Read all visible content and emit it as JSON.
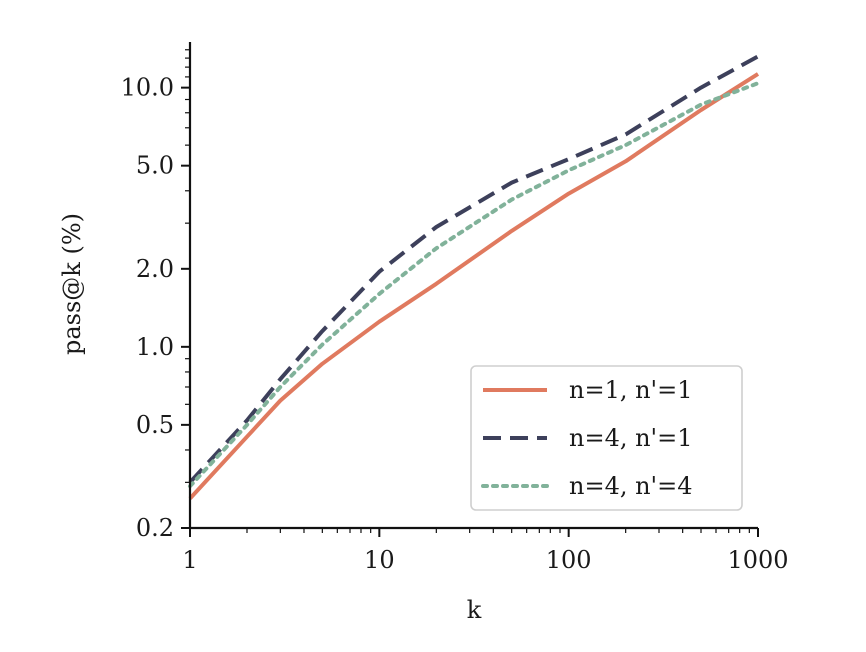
{
  "chart_data": {
    "type": "line",
    "xlabel": "k",
    "ylabel": "pass@k (%)",
    "xscale": "log",
    "yscale": "log",
    "xlim": [
      1,
      1000
    ],
    "ylim": [
      0.2,
      15
    ],
    "xticks": [
      1,
      10,
      100,
      1000
    ],
    "xtick_labels": [
      "1",
      "10",
      "100",
      "1000"
    ],
    "yticks": [
      0.2,
      0.5,
      1.0,
      2.0,
      5.0,
      10.0
    ],
    "ytick_labels": [
      "0.2",
      "0.5",
      "1.0",
      "2.0",
      "5.0",
      "10.0"
    ],
    "grid": false,
    "legend_position": "lower-right",
    "series": [
      {
        "name": "n=1, n'=1",
        "color": "#e07a5f",
        "dash": "solid",
        "x": [
          1,
          2,
          3,
          5,
          10,
          20,
          50,
          100,
          200,
          500,
          1000
        ],
        "y": [
          0.26,
          0.45,
          0.62,
          0.86,
          1.25,
          1.75,
          2.8,
          3.9,
          5.2,
          8.2,
          11.3
        ]
      },
      {
        "name": "n=4, n'=1",
        "color": "#3d405b",
        "dash": "dashed",
        "x": [
          1,
          2,
          3,
          5,
          10,
          20,
          50,
          100,
          200,
          500,
          1000
        ],
        "y": [
          0.3,
          0.52,
          0.75,
          1.15,
          1.95,
          2.9,
          4.3,
          5.3,
          6.6,
          10.0,
          13.2
        ]
      },
      {
        "name": "n=4, n'=4",
        "color": "#81b29a",
        "dash": "dotted",
        "x": [
          1,
          2,
          3,
          5,
          10,
          20,
          50,
          100,
          200,
          500,
          1000
        ],
        "y": [
          0.29,
          0.5,
          0.7,
          1.02,
          1.6,
          2.4,
          3.7,
          4.8,
          6.0,
          8.6,
          10.4
        ]
      }
    ]
  }
}
